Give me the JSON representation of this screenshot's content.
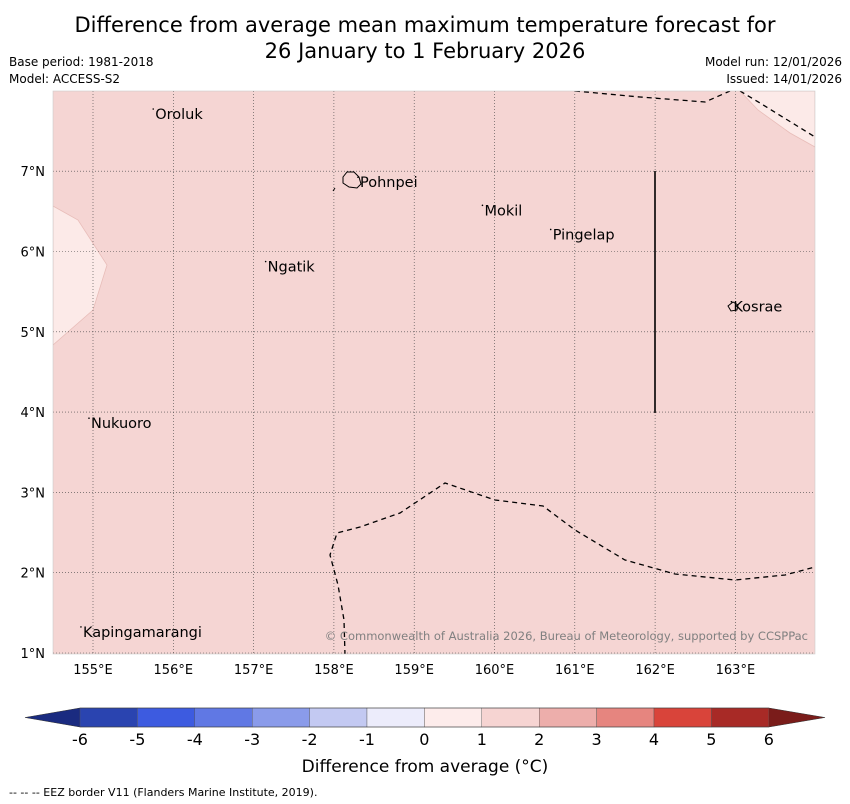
{
  "title_line1": "Difference from average mean maximum temperature forecast for",
  "title_line2": "26 January to 1 February 2026",
  "base_period": "Base period: 1981-2018",
  "model": "Model: ACCESS-S2",
  "model_run": "Model run: 12/01/2026",
  "issued": "Issued: 14/01/2026",
  "map": {
    "lon_ticks": [
      "155°E",
      "156°E",
      "157°E",
      "158°E",
      "159°E",
      "160°E",
      "161°E",
      "162°E",
      "163°E"
    ],
    "lat_ticks": [
      "1°N",
      "2°N",
      "3°N",
      "4°N",
      "5°N",
      "6°N",
      "7°N"
    ],
    "places": [
      {
        "name": "Oroluk",
        "lon": 155.75,
        "lat": 7.7
      },
      {
        "name": "Pohnpei",
        "lon": 158.3,
        "lat": 6.85
      },
      {
        "name": "Mokil",
        "lon": 159.85,
        "lat": 6.5
      },
      {
        "name": "Pingelap",
        "lon": 160.7,
        "lat": 6.2
      },
      {
        "name": "Ngatik",
        "lon": 157.15,
        "lat": 5.8
      },
      {
        "name": "Kosrae",
        "lon": 162.95,
        "lat": 5.3
      },
      {
        "name": "Nukuoro",
        "lon": 154.95,
        "lat": 3.85
      },
      {
        "name": "Kapingamarangi",
        "lon": 154.85,
        "lat": 1.25
      }
    ],
    "copyright": "© Commonwealth of Australia 2026, Bureau of Meteorology, supported by CCSPPac",
    "fill_colors": {
      "main": "#f5d5d3",
      "light": "#fceae8"
    }
  },
  "colorbar": {
    "ticks": [
      "-6",
      "-5",
      "-4",
      "-3",
      "-2",
      "-1",
      "0",
      "1",
      "2",
      "3",
      "4",
      "5",
      "6"
    ],
    "colors": [
      "#1a2b80",
      "#2a44b0",
      "#3d5be0",
      "#6078e4",
      "#8a9bea",
      "#c3c9f2",
      "#ececfb",
      "#fdeceb",
      "#f6d4d2",
      "#edaeab",
      "#e6857f",
      "#d9443a",
      "#a82a26",
      "#7a1c1a"
    ],
    "label": "Difference from average (°C)"
  },
  "footnote": "--  --  -- EEZ border V11 (Flanders Marine Institute, 2019)."
}
